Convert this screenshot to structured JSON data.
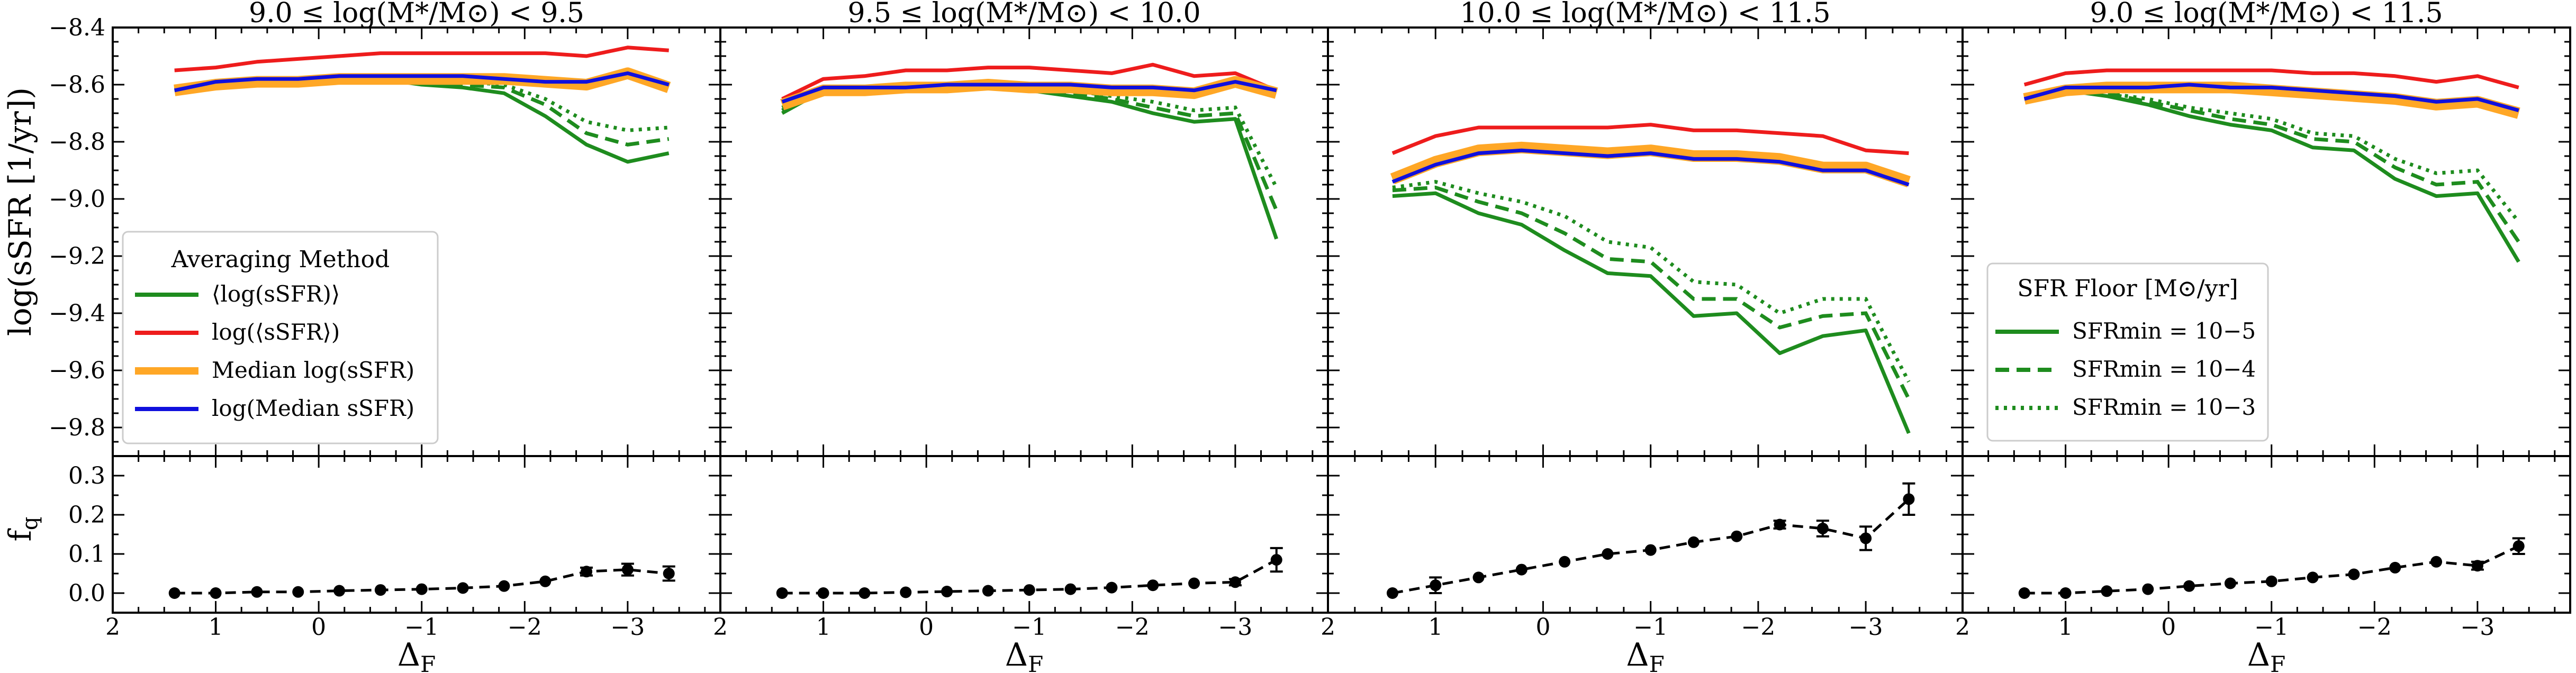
{
  "colors": {
    "green": "#1e8c1e",
    "red": "#ee1c1c",
    "orange": "#ffa726",
    "blue": "#1010dd",
    "black": "#000000"
  },
  "shared": {
    "ylabel_top": "log(sSFR [1/yr])",
    "ylabel_bottom": "f",
    "ylabel_bottom_sub": "q",
    "xlabel": "Δ",
    "xlabel_sub": "F"
  },
  "legend_method": {
    "title": "Averaging Method",
    "entries": [
      {
        "label": "⟨log(sSFR)⟩",
        "color": "#1e8c1e"
      },
      {
        "label": "log(⟨sSFR⟩)",
        "color": "#ee1c1c"
      },
      {
        "label": "Median log(sSFR)",
        "color": "#ffa726"
      },
      {
        "label": "log(Median sSFR)",
        "color": "#1010dd"
      }
    ]
  },
  "legend_floor": {
    "title": "SFR Floor [M⊙/yr]",
    "entries": [
      {
        "label": "SFRmin = 10−5",
        "dash": "solid"
      },
      {
        "label": "SFRmin = 10−4",
        "dash": "dashed"
      },
      {
        "label": "SFRmin = 10−3",
        "dash": "dotted"
      }
    ]
  },
  "chart_data": [
    {
      "type": "line",
      "title": "9.0 ≤ log(M*/M⊙) < 9.5",
      "xlabel": "ΔF",
      "ylabel": "log(sSFR [1/yr])",
      "xlim": [
        2,
        -3.9
      ],
      "ylim": [
        -9.9,
        -8.4
      ],
      "xticks": [
        "2",
        "1",
        "0",
        "−1",
        "−2",
        "−3"
      ],
      "yticks": [
        "−8.4",
        "−8.6",
        "−8.8",
        "−9.0",
        "−9.2",
        "−9.4",
        "−9.6",
        "−9.8"
      ],
      "x": [
        1.4,
        1.0,
        0.6,
        0.2,
        -0.2,
        -0.6,
        -1.0,
        -1.4,
        -1.8,
        -2.2,
        -2.6,
        -3.0,
        -3.4
      ],
      "series": [
        {
          "name": "log(⟨sSFR⟩)",
          "values": [
            -8.55,
            -8.54,
            -8.52,
            -8.51,
            -8.5,
            -8.49,
            -8.49,
            -8.49,
            -8.49,
            -8.49,
            -8.5,
            -8.47,
            -8.48
          ]
        },
        {
          "name": "Median log(sSFR)",
          "values": [
            -8.62,
            -8.6,
            -8.59,
            -8.59,
            -8.58,
            -8.58,
            -8.58,
            -8.58,
            -8.58,
            -8.59,
            -8.6,
            -8.56,
            -8.61
          ]
        },
        {
          "name": "log(Median sSFR)",
          "values": [
            -8.62,
            -8.59,
            -8.58,
            -8.58,
            -8.57,
            -8.57,
            -8.57,
            -8.57,
            -8.58,
            -8.59,
            -8.59,
            -8.56,
            -8.6
          ]
        },
        {
          "name": "⟨log(sSFR)⟩ SFRmin=1e-5",
          "values": [
            -8.62,
            -8.6,
            -8.59,
            -8.59,
            -8.58,
            -8.58,
            -8.6,
            -8.61,
            -8.63,
            -8.71,
            -8.81,
            -8.87,
            -8.84
          ]
        },
        {
          "name": "⟨log(sSFR)⟩ SFRmin=1e-4",
          "values": [
            -8.62,
            -8.6,
            -8.59,
            -8.59,
            -8.58,
            -8.58,
            -8.59,
            -8.6,
            -8.61,
            -8.67,
            -8.77,
            -8.81,
            -8.79
          ]
        },
        {
          "name": "⟨log(sSFR)⟩ SFRmin=1e-3",
          "values": [
            -8.62,
            -8.6,
            -8.59,
            -8.59,
            -8.58,
            -8.58,
            -8.59,
            -8.59,
            -8.6,
            -8.65,
            -8.73,
            -8.76,
            -8.75
          ]
        }
      ],
      "fq": {
        "ylim": [
          -0.05,
          0.35
        ],
        "yticks": [
          "0.0",
          "0.1",
          "0.2",
          "0.3"
        ],
        "values": [
          0.0,
          0.0,
          0.003,
          0.003,
          0.006,
          0.008,
          0.01,
          0.013,
          0.018,
          0.03,
          0.055,
          0.06,
          0.05
        ],
        "errors": [
          0,
          0,
          0,
          0,
          0,
          0,
          0,
          0,
          0,
          0,
          0.01,
          0.015,
          0.018
        ]
      }
    },
    {
      "type": "line",
      "title": "9.5 ≤ log(M*/M⊙) < 10.0",
      "xlabel": "ΔF",
      "ylabel": "log(sSFR [1/yr])",
      "xlim": [
        2,
        -3.9
      ],
      "ylim": [
        -9.9,
        -8.4
      ],
      "xticks": [
        "2",
        "1",
        "0",
        "−1",
        "−2",
        "−3"
      ],
      "yticks": [
        "−8.4",
        "−8.6",
        "−8.8",
        "−9.0",
        "−9.2",
        "−9.4",
        "−9.6",
        "−9.8"
      ],
      "x": [
        1.4,
        1.0,
        0.6,
        0.2,
        -0.2,
        -0.6,
        -1.0,
        -1.4,
        -1.8,
        -2.2,
        -2.6,
        -3.0,
        -3.4
      ],
      "series": [
        {
          "name": "log(⟨sSFR⟩)",
          "values": [
            -8.65,
            -8.58,
            -8.57,
            -8.55,
            -8.55,
            -8.54,
            -8.54,
            -8.55,
            -8.56,
            -8.53,
            -8.57,
            -8.56,
            -8.62
          ]
        },
        {
          "name": "Median log(sSFR)",
          "values": [
            -8.67,
            -8.62,
            -8.62,
            -8.61,
            -8.61,
            -8.6,
            -8.61,
            -8.61,
            -8.62,
            -8.62,
            -8.63,
            -8.59,
            -8.63
          ]
        },
        {
          "name": "log(Median sSFR)",
          "values": [
            -8.66,
            -8.61,
            -8.61,
            -8.61,
            -8.6,
            -8.6,
            -8.6,
            -8.6,
            -8.61,
            -8.61,
            -8.62,
            -8.59,
            -8.62
          ]
        },
        {
          "name": "⟨log(sSFR)⟩ SFRmin=1e-5",
          "values": [
            -8.7,
            -8.62,
            -8.62,
            -8.61,
            -8.61,
            -8.61,
            -8.62,
            -8.64,
            -8.66,
            -8.7,
            -8.73,
            -8.72,
            -9.14
          ]
        },
        {
          "name": "⟨log(sSFR)⟩ SFRmin=1e-4",
          "values": [
            -8.69,
            -8.62,
            -8.62,
            -8.61,
            -8.61,
            -8.61,
            -8.61,
            -8.63,
            -8.65,
            -8.68,
            -8.71,
            -8.7,
            -9.04
          ]
        },
        {
          "name": "⟨log(sSFR)⟩ SFRmin=1e-3",
          "values": [
            -8.68,
            -8.62,
            -8.62,
            -8.61,
            -8.61,
            -8.61,
            -8.61,
            -8.62,
            -8.64,
            -8.66,
            -8.69,
            -8.68,
            -8.96
          ]
        }
      ],
      "fq": {
        "ylim": [
          -0.05,
          0.35
        ],
        "yticks": [
          "0.0",
          "0.1",
          "0.2",
          "0.3"
        ],
        "values": [
          0.0,
          0.0,
          0.0,
          0.002,
          0.004,
          0.006,
          0.008,
          0.01,
          0.014,
          0.02,
          0.025,
          0.028,
          0.085
        ],
        "errors": [
          0,
          0,
          0,
          0,
          0,
          0,
          0,
          0,
          0,
          0,
          0,
          0.008,
          0.03
        ]
      }
    },
    {
      "type": "line",
      "title": "10.0 ≤ log(M*/M⊙) < 11.5",
      "xlabel": "ΔF",
      "ylabel": "log(sSFR [1/yr])",
      "xlim": [
        2,
        -3.9
      ],
      "ylim": [
        -9.9,
        -8.4
      ],
      "xticks": [
        "2",
        "1",
        "0",
        "−1",
        "−2",
        "−3"
      ],
      "yticks": [
        "−8.4",
        "−8.6",
        "−8.8",
        "−9.0",
        "−9.2",
        "−9.4",
        "−9.6",
        "−9.8"
      ],
      "x": [
        1.4,
        1.0,
        0.6,
        0.2,
        -0.2,
        -0.6,
        -1.0,
        -1.4,
        -1.8,
        -2.2,
        -2.6,
        -3.0,
        -3.4
      ],
      "series": [
        {
          "name": "log(⟨sSFR⟩)",
          "values": [
            -8.84,
            -8.78,
            -8.75,
            -8.75,
            -8.75,
            -8.75,
            -8.74,
            -8.76,
            -8.76,
            -8.77,
            -8.78,
            -8.83,
            -8.84
          ]
        },
        {
          "name": "Median log(sSFR)",
          "values": [
            -8.93,
            -8.87,
            -8.83,
            -8.82,
            -8.83,
            -8.84,
            -8.83,
            -8.85,
            -8.85,
            -8.86,
            -8.89,
            -8.89,
            -8.94
          ]
        },
        {
          "name": "log(Median sSFR)",
          "values": [
            -8.94,
            -8.88,
            -8.84,
            -8.83,
            -8.84,
            -8.85,
            -8.84,
            -8.86,
            -8.86,
            -8.87,
            -8.9,
            -8.9,
            -8.95
          ]
        },
        {
          "name": "⟨log(sSFR)⟩ SFRmin=1e-5",
          "values": [
            -8.99,
            -8.98,
            -9.05,
            -9.09,
            -9.18,
            -9.26,
            -9.27,
            -9.41,
            -9.4,
            -9.54,
            -9.48,
            -9.46,
            -9.82
          ]
        },
        {
          "name": "⟨log(sSFR)⟩ SFRmin=1e-4",
          "values": [
            -8.97,
            -8.96,
            -9.01,
            -9.05,
            -9.12,
            -9.21,
            -9.22,
            -9.35,
            -9.35,
            -9.45,
            -9.41,
            -9.4,
            -9.7
          ]
        },
        {
          "name": "⟨log(sSFR)⟩ SFRmin=1e-3",
          "values": [
            -8.96,
            -8.94,
            -8.98,
            -9.01,
            -9.06,
            -9.15,
            -9.17,
            -9.29,
            -9.3,
            -9.4,
            -9.35,
            -9.35,
            -9.64
          ]
        }
      ],
      "fq": {
        "ylim": [
          -0.05,
          0.35
        ],
        "yticks": [
          "0.0",
          "0.1",
          "0.2",
          "0.3"
        ],
        "values": [
          0.0,
          0.02,
          0.04,
          0.06,
          0.08,
          0.1,
          0.11,
          0.13,
          0.145,
          0.175,
          0.165,
          0.14,
          0.24
        ],
        "errors": [
          0,
          0.02,
          0,
          0,
          0,
          0,
          0,
          0,
          0,
          0.01,
          0.02,
          0.03,
          0.04
        ]
      }
    },
    {
      "type": "line",
      "title": "9.0 ≤ log(M*/M⊙) < 11.5",
      "xlabel": "ΔF",
      "ylabel": "log(sSFR [1/yr])",
      "xlim": [
        2,
        -3.9
      ],
      "ylim": [
        -9.9,
        -8.4
      ],
      "xticks": [
        "2",
        "1",
        "0",
        "−1",
        "−2",
        "−3"
      ],
      "yticks": [
        "−8.4",
        "−8.6",
        "−8.8",
        "−9.0",
        "−9.2",
        "−9.4",
        "−9.6",
        "−9.8"
      ],
      "x": [
        1.4,
        1.0,
        0.6,
        0.2,
        -0.2,
        -0.6,
        -1.0,
        -1.4,
        -1.8,
        -2.2,
        -2.6,
        -3.0,
        -3.4
      ],
      "series": [
        {
          "name": "log(⟨sSFR⟩)",
          "values": [
            -8.6,
            -8.56,
            -8.55,
            -8.55,
            -8.55,
            -8.55,
            -8.55,
            -8.56,
            -8.56,
            -8.57,
            -8.59,
            -8.57,
            -8.61
          ]
        },
        {
          "name": "Median log(sSFR)",
          "values": [
            -8.65,
            -8.62,
            -8.61,
            -8.61,
            -8.61,
            -8.61,
            -8.62,
            -8.63,
            -8.64,
            -8.65,
            -8.67,
            -8.66,
            -8.7
          ]
        },
        {
          "name": "log(Median sSFR)",
          "values": [
            -8.65,
            -8.61,
            -8.61,
            -8.61,
            -8.6,
            -8.61,
            -8.61,
            -8.62,
            -8.63,
            -8.64,
            -8.66,
            -8.65,
            -8.69
          ]
        },
        {
          "name": "⟨log(sSFR)⟩ SFRmin=1e-5",
          "values": [
            -8.65,
            -8.62,
            -8.64,
            -8.67,
            -8.71,
            -8.74,
            -8.76,
            -8.82,
            -8.83,
            -8.93,
            -8.99,
            -8.98,
            -9.22
          ]
        },
        {
          "name": "⟨log(sSFR)⟩ SFRmin=1e-4",
          "values": [
            -8.65,
            -8.62,
            -8.63,
            -8.66,
            -8.69,
            -8.72,
            -8.74,
            -8.79,
            -8.8,
            -8.89,
            -8.95,
            -8.94,
            -9.15
          ]
        },
        {
          "name": "⟨log(sSFR)⟩ SFRmin=1e-3",
          "values": [
            -8.65,
            -8.62,
            -8.63,
            -8.65,
            -8.68,
            -8.7,
            -8.72,
            -8.77,
            -8.78,
            -8.86,
            -8.91,
            -8.9,
            -9.08
          ]
        }
      ],
      "fq": {
        "ylim": [
          -0.05,
          0.35
        ],
        "yticks": [
          "0.0",
          "0.1",
          "0.2",
          "0.3"
        ],
        "values": [
          0.0,
          0.0,
          0.005,
          0.01,
          0.018,
          0.025,
          0.03,
          0.04,
          0.048,
          0.065,
          0.08,
          0.07,
          0.12
        ],
        "errors": [
          0,
          0,
          0,
          0,
          0,
          0,
          0,
          0,
          0,
          0,
          0,
          0.01,
          0.02
        ]
      }
    }
  ]
}
